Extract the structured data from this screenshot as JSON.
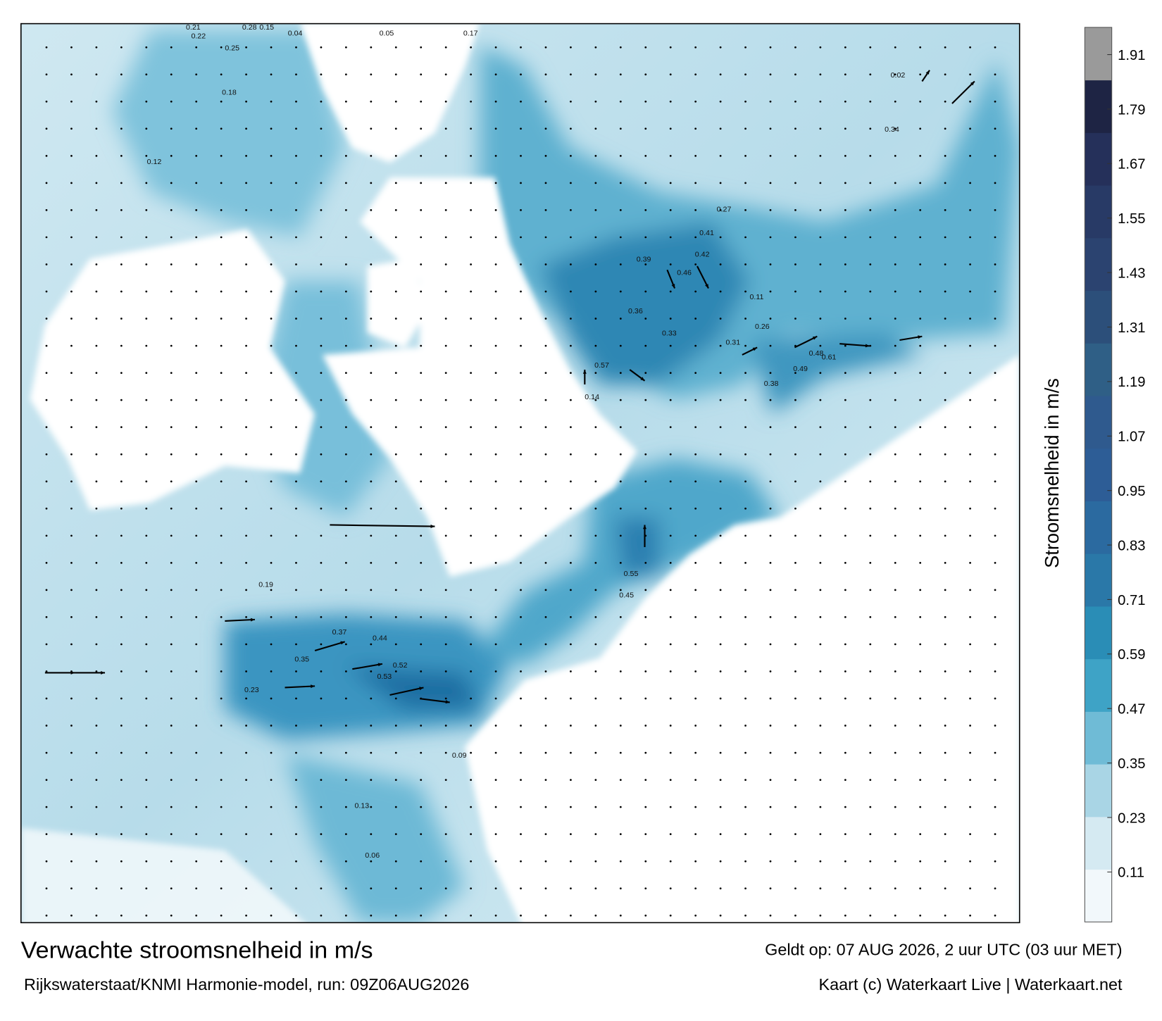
{
  "map": {
    "title": "Verwachte stroomsnelheid in m/s",
    "subtitle": "Rijkswaterstaat/KNMI Harmonie-model, run: 09Z06AUG2026",
    "valid": "Geldt op: 07 AUG 2026, 2 uur UTC (03 uur MET)",
    "credit": "Kaart (c) Waterkaart Live | Waterkaart.net",
    "colorbar": {
      "label": "Stroomsnelheid in m/s",
      "range": [
        0,
        1.97
      ],
      "ticks": [
        0.11,
        0.23,
        0.35,
        0.47,
        0.59,
        0.71,
        0.83,
        0.95,
        1.07,
        1.19,
        1.31,
        1.43,
        1.55,
        1.67,
        1.79,
        1.91
      ],
      "colors": [
        "#f2f8fb",
        "#d5eaf2",
        "#a9d5e5",
        "#6fbbd6",
        "#3ea3c6",
        "#2a8db6",
        "#2a78a8",
        "#2b6aa0",
        "#2d5d96",
        "#2f5a8e",
        "#2f5f86",
        "#2c4f7a",
        "#2b4370",
        "#283a66",
        "#25305a",
        "#1e2444",
        "#9a9a9a"
      ]
    },
    "speed_labels": [
      0.21,
      0.22,
      0.28,
      0.15,
      0.04,
      0.05,
      0.17,
      0.25,
      0.12,
      0.18,
      0.41,
      0.42,
      0.46,
      0.39,
      0.36,
      0.27,
      0.31,
      0.33,
      0.14,
      0.57,
      0.61,
      0.49,
      0.48,
      0.38,
      0.44,
      0.53,
      0.52,
      0.37,
      0.35,
      0.19,
      0.23,
      0.09,
      0.13,
      0.06,
      0.02,
      0.11,
      0.26,
      0.55,
      0.45,
      0.34
    ]
  }
}
